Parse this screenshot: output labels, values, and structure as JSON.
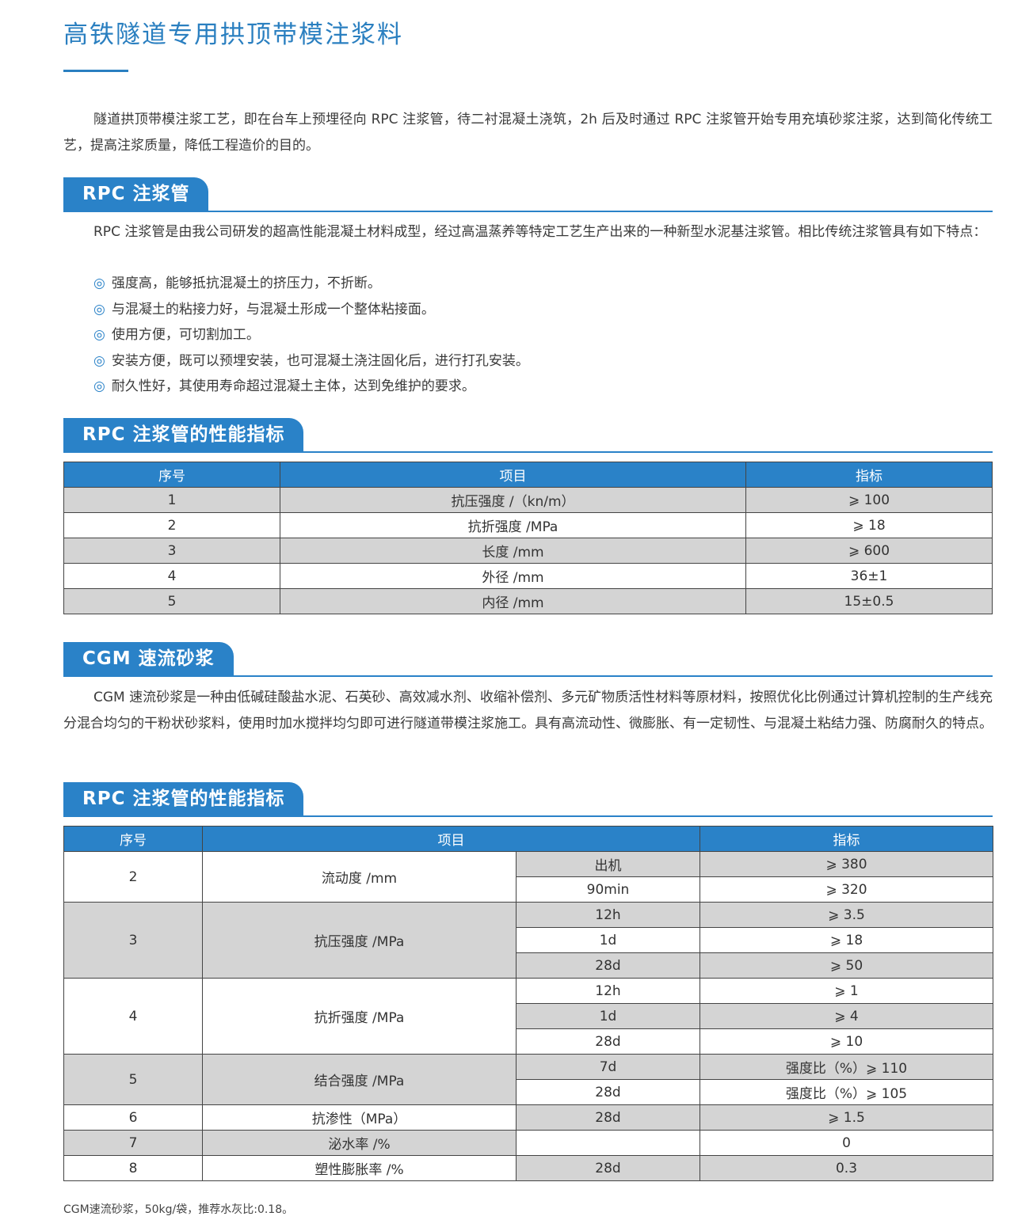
{
  "title": "高铁隧道专用拱顶带模注浆料",
  "intro": "隧道拱顶带模注浆工艺，即在台车上预埋径向 RPC 注浆管，待二衬混凝土浇筑，2h 后及时通过 RPC 注浆管开始专用充填砂浆注浆，达到简化传统工艺，提高注浆质量，降低工程造价的目的。",
  "accent_color": "#2a82c8",
  "section1": {
    "heading": "RPC 注浆管",
    "text": "RPC 注浆管是由我公司研发的超高性能混凝土材料成型，经过高温蒸养等特定工艺生产出来的一种新型水泥基注浆管。相比传统注浆管具有如下特点：",
    "bullet_symbol": "◎",
    "bullets": [
      "强度高，能够抵抗混凝土的挤压力，不折断。",
      "与混凝土的粘接力好，与混凝土形成一个整体粘接面。",
      "使用方便，可切割加工。",
      "安装方便，既可以预埋安装，也可混凝土浇注固化后，进行打孔安装。",
      "耐久性好，其使用寿命超过混凝土主体，达到免维护的要求。"
    ]
  },
  "table1": {
    "heading": "RPC 注浆管的性能指标",
    "headers": [
      "序号",
      "项目",
      "指标"
    ],
    "rows": [
      [
        "1",
        "抗压强度 /（kn/m）",
        "⩾ 100"
      ],
      [
        "2",
        "抗折强度 /MPa",
        "⩾ 18"
      ],
      [
        "3",
        "长度 /mm",
        "⩾ 600"
      ],
      [
        "4",
        "外径 /mm",
        "36±1"
      ],
      [
        "5",
        "内径 /mm",
        "15±0.5"
      ]
    ]
  },
  "section2": {
    "heading": "CGM 速流砂浆",
    "text": "CGM 速流砂浆是一种由低碱硅酸盐水泥、石英砂、高效减水剂、收缩补偿剂、多元矿物质活性材料等原材料，按照优化比例通过计算机控制的生产线充分混合均匀的干粉状砂浆料，使用时加水搅拌均匀即可进行隧道带模注浆施工。具有高流动性、微膨胀、有一定韧性、与混凝土粘结力强、防腐耐久的特点。"
  },
  "table2": {
    "heading": "RPC 注浆管的性能指标",
    "headers": [
      "序号",
      "项目",
      "指标"
    ],
    "groups": [
      {
        "no": "2",
        "item": "流动度 /mm",
        "subs": [
          [
            "出机",
            "⩾ 380"
          ],
          [
            "90min",
            "⩾ 320"
          ]
        ]
      },
      {
        "no": "3",
        "item": "抗压强度 /MPa",
        "subs": [
          [
            "12h",
            "⩾ 3.5"
          ],
          [
            "1d",
            "⩾ 18"
          ],
          [
            "28d",
            "⩾ 50"
          ]
        ]
      },
      {
        "no": "4",
        "item": "抗折强度 /MPa",
        "subs": [
          [
            "12h",
            "⩾ 1"
          ],
          [
            "1d",
            "⩾ 4"
          ],
          [
            "28d",
            "⩾ 10"
          ]
        ]
      },
      {
        "no": "5",
        "item": "结合强度 /MPa",
        "subs": [
          [
            "7d",
            "强度比（%）⩾ 110"
          ],
          [
            "28d",
            "强度比（%）⩾ 105"
          ]
        ]
      },
      {
        "no": "6",
        "item": "抗渗性（MPa）",
        "subs": [
          [
            "28d",
            "⩾ 1.5"
          ]
        ]
      },
      {
        "no": "7",
        "item": "泌水率 /%",
        "subs": [
          [
            "",
            "0"
          ]
        ]
      },
      {
        "no": "8",
        "item": "塑性膨胀率 /%",
        "subs": [
          [
            "28d",
            "0.3"
          ]
        ]
      }
    ]
  },
  "footnote": "CGM速流砂浆，50kg/袋，推荐水灰比:0.18。"
}
